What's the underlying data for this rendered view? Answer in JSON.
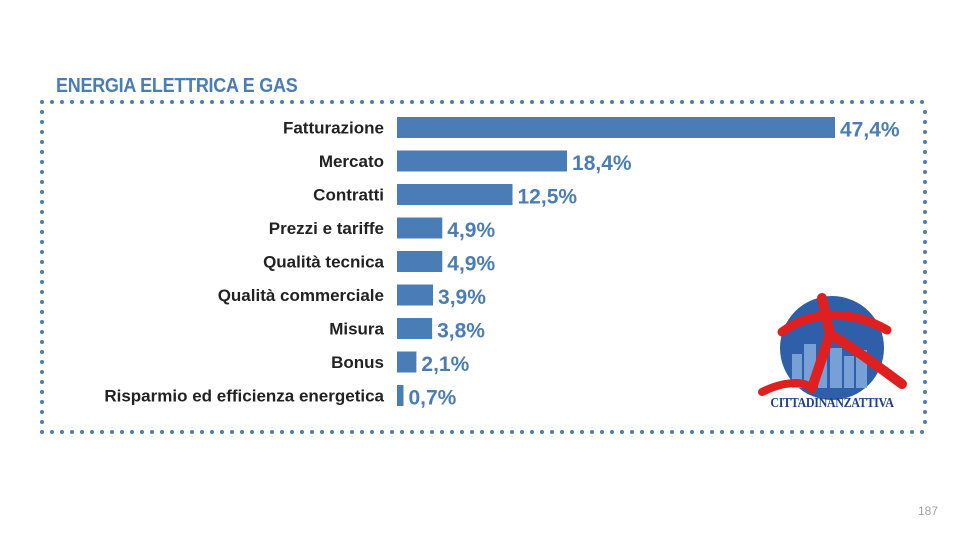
{
  "slide": {
    "page_number": "187"
  },
  "logo": {
    "name": "CITTADINANZATTIVA"
  },
  "colors": {
    "bar": "#4a7db5",
    "label": "#222222",
    "value": "#4a7db5",
    "frame": "#4a7db5"
  },
  "chart_data": {
    "type": "bar",
    "orientation": "horizontal",
    "title": "ENERGIA ELETTRICA E GAS",
    "categories": [
      "Fatturazione",
      "Mercato",
      "Contratti",
      "Prezzi e tariffe",
      "Qualità tecnica",
      "Qualità commerciale",
      "Misura",
      "Bonus",
      "Risparmio ed efficienza energetica"
    ],
    "values": [
      47.4,
      18.4,
      12.5,
      4.9,
      4.9,
      3.9,
      3.8,
      2.1,
      0.7
    ],
    "value_labels": [
      "47,4%",
      "18,4%",
      "12,5%",
      "4,9%",
      "4,9%",
      "3,9%",
      "3,8%",
      "2,1%",
      "0,7%"
    ],
    "unit": "%",
    "xlim": [
      0,
      47.4
    ],
    "grid": false,
    "axes_visible": false
  }
}
